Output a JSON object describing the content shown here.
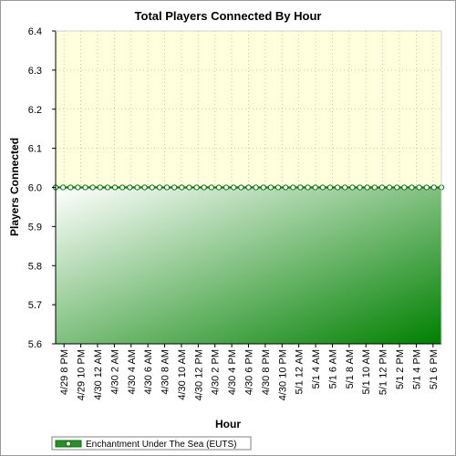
{
  "chart_data": {
    "type": "area",
    "title": "Total Players Connected By Hour",
    "xlabel": "Hour",
    "ylabel": "Players Connected",
    "ylim": [
      5.6,
      6.4
    ],
    "y_ticks": [
      "5.6",
      "5.7",
      "5.8",
      "5.9",
      "6.0",
      "6.1",
      "6.2",
      "6.3",
      "6.4"
    ],
    "categories": [
      "4/29 8 PM",
      "4/29 10 PM",
      "4/30 12 AM",
      "4/30 2 AM",
      "4/30 4 AM",
      "4/30 6 AM",
      "4/30 8 AM",
      "4/30 10 AM",
      "4/30 12 PM",
      "4/30 2 PM",
      "4/30 4 PM",
      "4/30 6 PM",
      "4/30 8 PM",
      "4/30 10 PM",
      "5/1 12 AM",
      "5/1 4 AM",
      "5/1 6 AM",
      "5/1 8 AM",
      "5/1 10 AM",
      "5/1 12 PM",
      "5/1 2 PM",
      "5/1 4 PM",
      "5/1 6 PM"
    ],
    "series": [
      {
        "name": "Enchantment Under The Sea (EUTS)",
        "point_count": 53,
        "value": 6.0,
        "color": "#008000"
      }
    ],
    "grid": true,
    "legend": "bottom-left",
    "colors": {
      "plot_upper_background": "#ffffdd",
      "area_gradient_start": "#ffffff",
      "area_gradient_end": "#008000",
      "line": "#0f7a0f"
    }
  }
}
